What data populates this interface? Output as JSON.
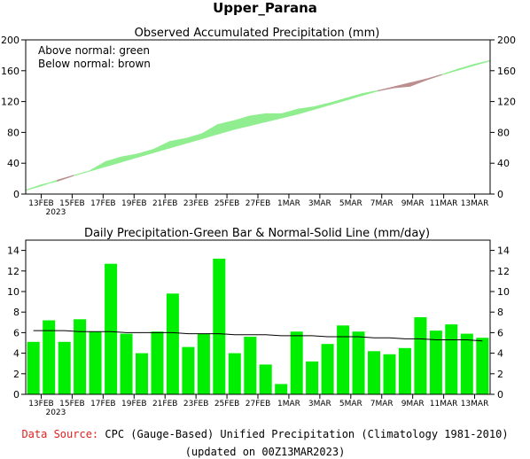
{
  "header": {
    "title": "Upper_Parana"
  },
  "colors": {
    "above_normal": "#90ee90",
    "below_normal": "#bc8f8f",
    "bar": "#00ee00",
    "normal_line": "#000000",
    "source_label": "#e02020"
  },
  "footer": {
    "source_label": "Data Source:",
    "source_text": "CPC (Gauge-Based) Unified Precipitation (Climatology 1981-2010)",
    "updated": "(updated on 00Z13MAR2023)"
  },
  "chart_data": [
    {
      "type": "area",
      "title": "Observed Accumulated Precipitation (mm)",
      "legend": [
        "Above normal: green",
        "Below normal: brown"
      ],
      "legend_placement": "top-left",
      "x_tick_labels": [
        "13FEB",
        "15FEB",
        "17FEB",
        "19FEB",
        "21FEB",
        "23FEB",
        "25FEB",
        "27FEB",
        "1MAR",
        "3MAR",
        "5MAR",
        "7MAR",
        "9MAR",
        "11MAR",
        "13MAR"
      ],
      "x_year_label": "2023",
      "ylim": [
        0,
        200
      ],
      "yticks": [
        0,
        40,
        80,
        120,
        160,
        200
      ],
      "days": [
        "12FEB",
        "13FEB",
        "14FEB",
        "15FEB",
        "16FEB",
        "17FEB",
        "18FEB",
        "19FEB",
        "20FEB",
        "21FEB",
        "22FEB",
        "23FEB",
        "24FEB",
        "25FEB",
        "26FEB",
        "27FEB",
        "28FEB",
        "1MAR",
        "2MAR",
        "3MAR",
        "4MAR",
        "5MAR",
        "6MAR",
        "7MAR",
        "8MAR",
        "9MAR",
        "10MAR",
        "11MAR",
        "12MAR",
        "13MAR"
      ],
      "series": [
        {
          "name": "Observed",
          "values": [
            5,
            12,
            17,
            24,
            30,
            42,
            48,
            52,
            58,
            68,
            72,
            78,
            90,
            95,
            101,
            104,
            104,
            110,
            113,
            118,
            124,
            130,
            134,
            138,
            140,
            148,
            155,
            162,
            168,
            173
          ]
        },
        {
          "name": "Normal",
          "values": [
            5,
            11,
            18,
            24,
            30,
            36,
            42,
            48,
            54,
            60,
            66,
            72,
            78,
            84,
            89,
            94,
            99,
            104,
            110,
            116,
            122,
            128,
            134,
            139,
            144,
            149,
            155,
            161,
            167,
            173
          ]
        }
      ]
    },
    {
      "type": "bar",
      "title": "Daily Precipitation-Green Bar & Normal-Solid Line (mm/day)",
      "x_tick_labels": [
        "13FEB",
        "15FEB",
        "17FEB",
        "19FEB",
        "21FEB",
        "23FEB",
        "25FEB",
        "27FEB",
        "1MAR",
        "3MAR",
        "5MAR",
        "7MAR",
        "9MAR",
        "11MAR",
        "13MAR"
      ],
      "x_year_label": "2023",
      "ylim": [
        0,
        15
      ],
      "yticks": [
        0,
        2,
        4,
        6,
        8,
        10,
        12,
        14
      ],
      "days": [
        "12FEB",
        "13FEB",
        "14FEB",
        "15FEB",
        "16FEB",
        "17FEB",
        "18FEB",
        "19FEB",
        "20FEB",
        "21FEB",
        "22FEB",
        "23FEB",
        "24FEB",
        "25FEB",
        "26FEB",
        "27FEB",
        "28FEB",
        "1MAR",
        "2MAR",
        "3MAR",
        "4MAR",
        "5MAR",
        "6MAR",
        "7MAR",
        "8MAR",
        "9MAR",
        "10MAR",
        "11MAR",
        "12MAR",
        "13MAR"
      ],
      "series": [
        {
          "name": "Daily precipitation",
          "values": [
            5.1,
            7.2,
            5.1,
            7.3,
            6.1,
            12.7,
            5.9,
            4.0,
            6.1,
            9.8,
            4.6,
            5.9,
            13.2,
            4.0,
            5.6,
            2.9,
            1.0,
            6.1,
            3.2,
            4.9,
            6.7,
            6.1,
            4.2,
            3.9,
            4.5,
            7.5,
            6.2,
            6.8,
            5.9,
            5.5
          ]
        },
        {
          "name": "Normal",
          "values": [
            6.2,
            6.2,
            6.2,
            6.1,
            6.1,
            6.1,
            6.0,
            6.0,
            6.0,
            6.0,
            5.9,
            5.9,
            5.9,
            5.8,
            5.8,
            5.8,
            5.7,
            5.7,
            5.7,
            5.6,
            5.6,
            5.6,
            5.5,
            5.5,
            5.4,
            5.4,
            5.3,
            5.3,
            5.3,
            5.2
          ]
        }
      ]
    }
  ]
}
